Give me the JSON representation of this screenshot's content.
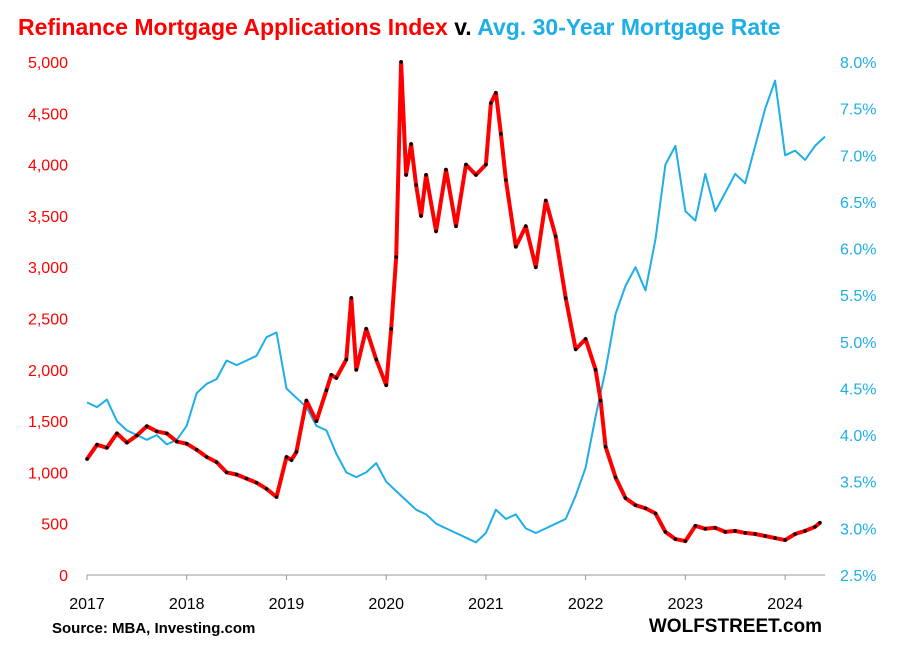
{
  "title": {
    "part1": "Refinance Mortgage Applications Index",
    "part2": " v. ",
    "part3": "Avg. 30-Year Mortgage Rate"
  },
  "source": "Source: MBA, Investing.com",
  "brand": "WOLFSTREET.com",
  "colors": {
    "index": "#ff0000",
    "index_markers": "#000000",
    "rate": "#1eaee8",
    "left_axis_text": "#ff0000",
    "right_axis_text": "#1eaee8"
  },
  "chart_data": {
    "type": "line",
    "grid": false,
    "x_tick_labels": [
      "2017",
      "2018",
      "2019",
      "2020",
      "2021",
      "2022",
      "2023",
      "2024"
    ],
    "xlim": [
      2017.0,
      2024.4
    ],
    "left_axis": {
      "ylim": [
        0,
        5000
      ],
      "tick_labels": [
        "0",
        "500",
        "1,000",
        "1,500",
        "2,000",
        "2,500",
        "3,000",
        "3,500",
        "4,000",
        "4,500",
        "5,000"
      ]
    },
    "right_axis": {
      "ylim": [
        2.5,
        8.0
      ],
      "tick_labels": [
        "2.5%",
        "3.0%",
        "3.5%",
        "4.0%",
        "4.5%",
        "5.0%",
        "5.5%",
        "6.0%",
        "6.5%",
        "7.0%",
        "7.5%",
        "8.0%"
      ]
    },
    "series": [
      {
        "name": "Refinance Mortgage Applications Index",
        "axis": "left",
        "x": [
          2017.0,
          2017.1,
          2017.2,
          2017.3,
          2017.4,
          2017.5,
          2017.6,
          2017.7,
          2017.8,
          2017.9,
          2018.0,
          2018.1,
          2018.2,
          2018.3,
          2018.4,
          2018.5,
          2018.6,
          2018.7,
          2018.8,
          2018.9,
          2019.0,
          2019.05,
          2019.1,
          2019.2,
          2019.3,
          2019.4,
          2019.45,
          2019.5,
          2019.6,
          2019.65,
          2019.7,
          2019.8,
          2019.9,
          2020.0,
          2020.05,
          2020.1,
          2020.15,
          2020.2,
          2020.25,
          2020.3,
          2020.35,
          2020.4,
          2020.5,
          2020.6,
          2020.7,
          2020.8,
          2020.9,
          2021.0,
          2021.05,
          2021.1,
          2021.15,
          2021.2,
          2021.3,
          2021.4,
          2021.5,
          2021.6,
          2021.7,
          2021.8,
          2021.9,
          2022.0,
          2022.1,
          2022.15,
          2022.2,
          2022.3,
          2022.4,
          2022.5,
          2022.6,
          2022.7,
          2022.8,
          2022.9,
          2023.0,
          2023.1,
          2023.2,
          2023.3,
          2023.4,
          2023.5,
          2023.6,
          2023.7,
          2023.8,
          2023.9,
          2024.0,
          2024.1,
          2024.2,
          2024.3,
          2024.35
        ],
        "y": [
          1130,
          1270,
          1240,
          1380,
          1290,
          1360,
          1450,
          1400,
          1380,
          1300,
          1280,
          1220,
          1150,
          1100,
          1000,
          980,
          940,
          900,
          840,
          760,
          1150,
          1120,
          1200,
          1700,
          1500,
          1800,
          1950,
          1920,
          2100,
          2700,
          2000,
          2400,
          2100,
          1850,
          2400,
          3100,
          5000,
          3900,
          4200,
          3800,
          3500,
          3900,
          3350,
          3950,
          3400,
          4000,
          3900,
          4000,
          4600,
          4700,
          4300,
          3850,
          3200,
          3400,
          3000,
          3650,
          3300,
          2700,
          2200,
          2300,
          2000,
          1700,
          1250,
          950,
          750,
          680,
          650,
          600,
          420,
          350,
          330,
          480,
          450,
          460,
          420,
          430,
          410,
          400,
          380,
          360,
          340,
          400,
          430,
          470,
          510
        ]
      },
      {
        "name": "Avg. 30-Year Mortgage Rate",
        "axis": "right",
        "x": [
          2017.0,
          2017.1,
          2017.2,
          2017.3,
          2017.4,
          2017.5,
          2017.6,
          2017.7,
          2017.8,
          2017.9,
          2018.0,
          2018.1,
          2018.2,
          2018.3,
          2018.4,
          2018.5,
          2018.6,
          2018.7,
          2018.8,
          2018.9,
          2019.0,
          2019.1,
          2019.2,
          2019.3,
          2019.4,
          2019.5,
          2019.6,
          2019.7,
          2019.8,
          2019.9,
          2020.0,
          2020.1,
          2020.2,
          2020.3,
          2020.4,
          2020.5,
          2020.6,
          2020.7,
          2020.8,
          2020.9,
          2021.0,
          2021.1,
          2021.2,
          2021.3,
          2021.4,
          2021.5,
          2021.6,
          2021.7,
          2021.8,
          2021.9,
          2022.0,
          2022.1,
          2022.2,
          2022.3,
          2022.4,
          2022.5,
          2022.6,
          2022.7,
          2022.8,
          2022.9,
          2023.0,
          2023.1,
          2023.2,
          2023.3,
          2023.4,
          2023.5,
          2023.6,
          2023.7,
          2023.8,
          2023.9,
          2024.0,
          2024.1,
          2024.2,
          2024.3,
          2024.4
        ],
        "y": [
          4.35,
          4.3,
          4.38,
          4.15,
          4.05,
          4.0,
          3.95,
          4.0,
          3.9,
          3.95,
          4.1,
          4.45,
          4.55,
          4.6,
          4.8,
          4.75,
          4.8,
          4.85,
          5.05,
          5.1,
          4.5,
          4.4,
          4.3,
          4.1,
          4.05,
          3.8,
          3.6,
          3.55,
          3.6,
          3.7,
          3.5,
          3.4,
          3.3,
          3.2,
          3.15,
          3.05,
          3.0,
          2.95,
          2.9,
          2.85,
          2.95,
          3.2,
          3.1,
          3.15,
          3.0,
          2.95,
          3.0,
          3.05,
          3.1,
          3.35,
          3.65,
          4.2,
          4.7,
          5.3,
          5.6,
          5.8,
          5.55,
          6.1,
          6.9,
          7.1,
          6.4,
          6.3,
          6.8,
          6.4,
          6.6,
          6.8,
          6.7,
          7.1,
          7.5,
          7.8,
          7.0,
          7.05,
          6.95,
          7.1,
          7.2
        ]
      }
    ]
  }
}
